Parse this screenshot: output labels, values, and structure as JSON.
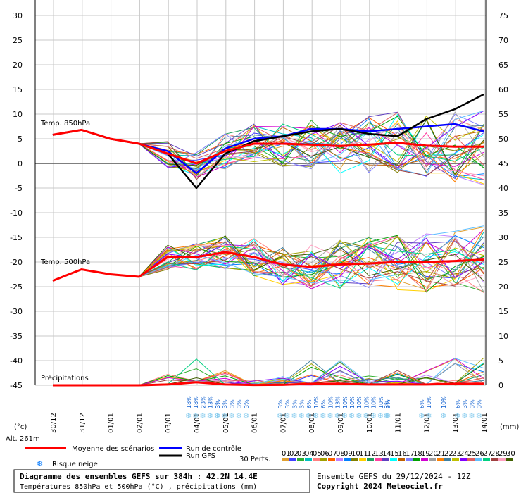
{
  "labels": {
    "t850": "Temp. 850hPa",
    "t500": "Temp. 500hPa",
    "precip": "Précipitations",
    "unit_left": "(°c)",
    "unit_right": "(mm)",
    "altitude": "Alt. 261m"
  },
  "legend": {
    "mean": "Moyenne des scénarios",
    "control": "Run de contrôle",
    "gfs": "Run GFS",
    "snow": "Risque neige",
    "perts": "30 Perts."
  },
  "footer": {
    "title": "Diagramme des ensembles GEFS sur 384h : 42.2N 14.4E",
    "subtitle": "Températures 850hPa et 500hPa (°C) , précipitations (mm)",
    "run": "Ensemble GEFS du 29/12/2024 - 12Z",
    "copyright": "Copyright 2024 Meteociel.fr"
  },
  "colors": {
    "mean": "#ff0000",
    "control": "#0000ff",
    "gfs": "#000000",
    "snow": "#88ccee",
    "perts": [
      "#e0a030",
      "#4040ff",
      "#30b030",
      "#00c0c0",
      "#ff8080",
      "#a0a000",
      "#ff6000",
      "#c080ff",
      "#0080ff",
      "#808000",
      "#ffd000",
      "#20a060",
      "#ff40a0",
      "#6040c0",
      "#00ffff",
      "#c06000",
      "#8080ff",
      "#00a000",
      "#d000d0",
      "#a0a0a0",
      "#ff8000",
      "#4080a0",
      "#c0c000",
      "#8000ff",
      "#e06060",
      "#60c0ff",
      "#00d080",
      "#a04040",
      "#ffa0c0",
      "#406000"
    ]
  },
  "chart_data": {
    "type": "line",
    "x": [
      "30/12",
      "31/12",
      "01/01",
      "02/01",
      "03/01",
      "04/01",
      "05/01",
      "06/01",
      "07/01",
      "08/01",
      "09/01",
      "10/01",
      "11/01",
      "12/01",
      "13/01",
      "14/01"
    ],
    "xlabel": "",
    "ylabel": "(°c)",
    "ylim": [
      -45,
      30
    ],
    "y_ticks": [
      30,
      25,
      20,
      15,
      10,
      5,
      0,
      -5,
      -10,
      -15,
      -20,
      -25,
      -30,
      -35,
      -40,
      -45
    ],
    "y2label": "(mm)",
    "y2lim": [
      0,
      75
    ],
    "y2_ticks": [
      75,
      70,
      65,
      60,
      55,
      50,
      45,
      40,
      35,
      30,
      25,
      20,
      15,
      10,
      5,
      0
    ],
    "grid": true,
    "series": [
      {
        "name": "Temp. 850hPa",
        "values": [
          5.8,
          6.8,
          5.0,
          4.0,
          2.0,
          0.0,
          2.5,
          4.0,
          4.0,
          3.8,
          3.5,
          3.8,
          4.2,
          3.6,
          3.4,
          3.4
        ]
      },
      {
        "name": "Temp. 500hPa",
        "values": [
          -23.8,
          -21.5,
          -22.5,
          -23.0,
          -19.0,
          -19.0,
          -18.0,
          -19.0,
          -20.5,
          -21.0,
          -20.5,
          -20.3,
          -20.0,
          -20.0,
          -19.8,
          -19.5
        ]
      },
      {
        "name": "Run de contrôle",
        "values": [
          5.8,
          6.8,
          5.0,
          4.0,
          2.5,
          -2.0,
          3.0,
          5.0,
          5.5,
          7.0,
          7.0,
          6.5,
          7.0,
          7.5,
          8.0,
          6.5
        ]
      },
      {
        "name": "Run GFS",
        "values": [
          5.8,
          6.8,
          5.0,
          4.0,
          2.0,
          -5.0,
          2.0,
          4.5,
          5.5,
          6.5,
          7.0,
          6.0,
          5.5,
          9.0,
          11.0,
          14.0
        ]
      }
    ],
    "precip_mm": [
      0,
      0,
      0,
      0,
      0.5,
      2,
      0.5,
      0.2,
      0.3,
      1,
      1,
      0.5,
      0.5,
      0.5,
      1,
      1
    ],
    "snow_risk": [
      {
        "date": "04/01",
        "pct": [
          "18%",
          "18%",
          "23%",
          "13%",
          "3%"
        ]
      },
      {
        "date": "05/01",
        "pct": [
          "3%",
          "3%",
          "3%",
          "3%",
          "3%"
        ]
      },
      {
        "date": "07/01",
        "pct": [
          "3%",
          "3%",
          "3%",
          "3%",
          "6%",
          "10%",
          "6%",
          "10%",
          "13%",
          "10%",
          "10%",
          "10%",
          "10%",
          "10%",
          "10%",
          "3%"
        ]
      },
      {
        "date": "11/01",
        "pct": [
          "3%"
        ]
      },
      {
        "date": "12/01",
        "pct": [
          "6%",
          "10%"
        ]
      },
      {
        "date": "13/01",
        "pct": [
          "10%"
        ]
      },
      {
        "date": "13/01b",
        "pct": [
          "6%",
          "3%",
          "3%",
          "3%"
        ]
      }
    ],
    "pert_ids": [
      "01",
      "02",
      "03",
      "04",
      "05",
      "06",
      "07",
      "08",
      "09",
      "10",
      "11",
      "12",
      "13",
      "14",
      "15",
      "16",
      "17",
      "18",
      "19",
      "20",
      "21",
      "22",
      "23",
      "24",
      "25",
      "26",
      "27",
      "28",
      "29",
      "30"
    ]
  }
}
